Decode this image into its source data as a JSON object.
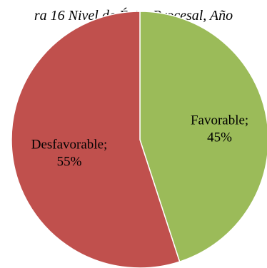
{
  "chart_data": {
    "type": "pie",
    "title": "ra 16 Nivel de Éxito Procesal, Año",
    "slices": [
      {
        "label": "Favorable",
        "value_label": "45%",
        "value": 45,
        "color": "#9bbb59"
      },
      {
        "label": "Desfavorable",
        "value_label": "55%",
        "value": 55,
        "color": "#c0504d"
      }
    ],
    "legend": "none"
  }
}
